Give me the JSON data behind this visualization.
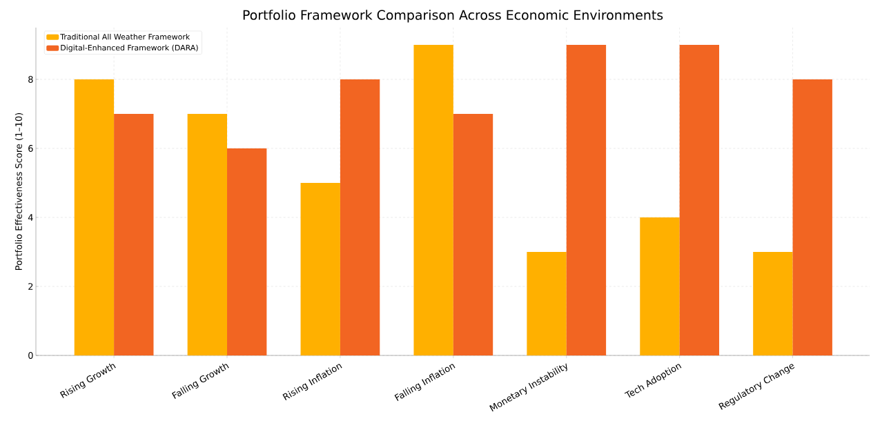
{
  "chart_data": {
    "type": "bar",
    "title": "Portfolio Framework Comparison Across Economic Environments",
    "ylabel": "Portfolio Effectiveness Score (1–10)",
    "categories": [
      "Rising Growth",
      "Falling Growth",
      "Rising Inflation",
      "Falling Inflation",
      "Monetary Instability",
      "Tech Adoption",
      "Regulatory Change"
    ],
    "series": [
      {
        "name": "Traditional All Weather Framework",
        "color": "#ffb000",
        "values": [
          8,
          7,
          5,
          9,
          3,
          4,
          3
        ]
      },
      {
        "name": "Digital-Enhanced Framework (DARA)",
        "color": "#f26522",
        "values": [
          7,
          6,
          8,
          7,
          9,
          9,
          8
        ]
      }
    ],
    "ylim": [
      0,
      9.5
    ],
    "yticks": [
      0,
      2,
      4,
      6,
      8
    ],
    "grid": true,
    "legend": "top left"
  }
}
